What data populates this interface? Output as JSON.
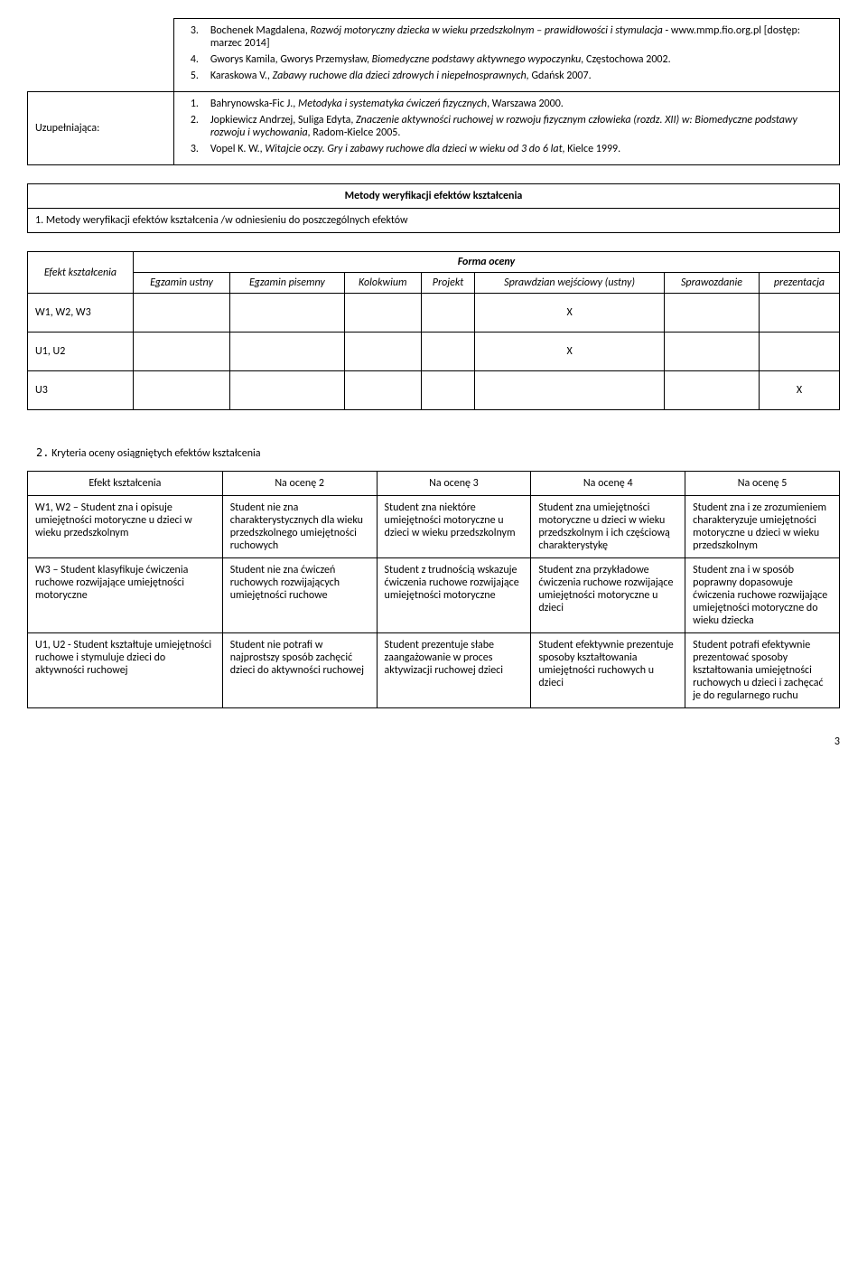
{
  "bibliography": {
    "supplementary_label": "Uzupełniająca:",
    "top_list": [
      {
        "n": "3.",
        "text_a": "Bochenek Magdalena, ",
        "text_i": "Rozwój motoryczny dziecka w wieku przedszkolnym – prawidłowości i stymulacja",
        "text_b": " - www.mmp.fio.org.pl [dostęp: marzec 2014]"
      },
      {
        "n": "4.",
        "text_a": "Gworys Kamila, Gworys Przemysław, ",
        "text_i": "Biomedyczne podstawy aktywnego wypoczynku,",
        "text_b": " Częstochowa 2002."
      },
      {
        "n": "5.",
        "text_a": "Karaskowa V., ",
        "text_i": "Zabawy ruchowe dla dzieci zdrowych i niepełnosprawnych,",
        "text_b": " Gdańsk 2007."
      }
    ],
    "bottom_list": [
      {
        "n": "1.",
        "text_a": "Bahrynowska-Fic J., ",
        "text_i": "Metodyka i systematyka ćwiczeń fizycznych",
        "text_b": ", Warszawa 2000."
      },
      {
        "n": "2.",
        "text_a": "Jopkiewicz Andrzej, Suliga Edyta, ",
        "text_i": "Znaczenie aktywności ruchowej w rozwoju fizycznym człowieka (rozdz. XII) w: Biomedyczne podstawy rozwoju i wychowania,",
        "text_b": " Radom-Kielce 2005."
      },
      {
        "n": "3.",
        "text_a": "Vopel K. W., ",
        "text_i": "Witajcie oczy. Gry i zabawy ruchowe dla dzieci w wieku od 3 do 6 lat,",
        "text_b": " Kielce 1999."
      }
    ]
  },
  "methods_section": {
    "title": "Metody weryfikacji efektów kształcenia",
    "subtitle_num": "1.",
    "subtitle": "Metody weryfikacji efektów kształcenia /w odniesieniu do poszczególnych efektów"
  },
  "assessment_table": {
    "effect_label": "Efekt kształcenia",
    "form_label": "Forma oceny",
    "headers": [
      "Egzamin ustny",
      "Egzamin pisemny",
      "Kolokwium",
      "Projekt",
      "Sprawdzian wejściowy (ustny)",
      "Sprawozdanie",
      "prezentacja"
    ],
    "rows": [
      {
        "label": "W1, W2, W3",
        "marks": [
          "",
          "",
          "",
          "",
          "X",
          "",
          ""
        ]
      },
      {
        "label": "U1, U2",
        "marks": [
          "",
          "",
          "",
          "",
          "X",
          "",
          ""
        ]
      },
      {
        "label": "U3",
        "marks": [
          "",
          "",
          "",
          "",
          "",
          "",
          "X"
        ]
      }
    ]
  },
  "criteria_section": {
    "num": "2.",
    "title": "Kryteria oceny osiągniętych efektów kształcenia",
    "headers": [
      "Efekt kształcenia",
      "Na ocenę 2",
      "Na ocenę 3",
      "Na ocenę 4",
      "Na ocenę 5"
    ],
    "rows": [
      {
        "c": [
          "W1, W2 – Student zna i opisuje umiejętności motoryczne u dzieci w wieku przedszkolnym",
          "Student nie zna charakterystycznych dla wieku przedszkolnego umiejętności ruchowych",
          "Student zna niektóre umiejętności motoryczne u dzieci w wieku przedszkolnym",
          "Student zna umiejętności motoryczne u dzieci w wieku przedszkolnym i ich częściową charakterystykę",
          "Student zna i ze zrozumieniem charakteryzuje umiejętności motoryczne u dzieci w wieku przedszkolnym"
        ]
      },
      {
        "c": [
          "W3 – Student klasyfikuje ćwiczenia ruchowe rozwijające umiejętności motoryczne",
          "Student nie zna ćwiczeń ruchowych rozwijających umiejętności ruchowe",
          "Student z trudnością wskazuje ćwiczenia ruchowe rozwijające umiejętności motoryczne",
          "Student zna przykładowe ćwiczenia ruchowe rozwijające umiejętności motoryczne u dzieci",
          "Student zna i w sposób poprawny dopasowuje ćwiczenia ruchowe rozwijające umiejętności motoryczne do wieku dziecka"
        ]
      },
      {
        "c": [
          "U1, U2 - Student kształtuje umiejętności ruchowe i stymuluje dzieci do aktywności ruchowej",
          "Student nie potrafi w najprostszy sposób zachęcić dzieci do aktywności ruchowej",
          "Student prezentuje słabe zaangażowanie w proces aktywizacji ruchowej dzieci",
          "Student efektywnie prezentuje sposoby kształtowania umiejętności ruchowych u dzieci",
          "Student potrafi efektywnie prezentować sposoby kształtowania umiejętności ruchowych u dzieci i zachęcać je do regularnego ruchu"
        ]
      }
    ]
  },
  "page_number": "3"
}
